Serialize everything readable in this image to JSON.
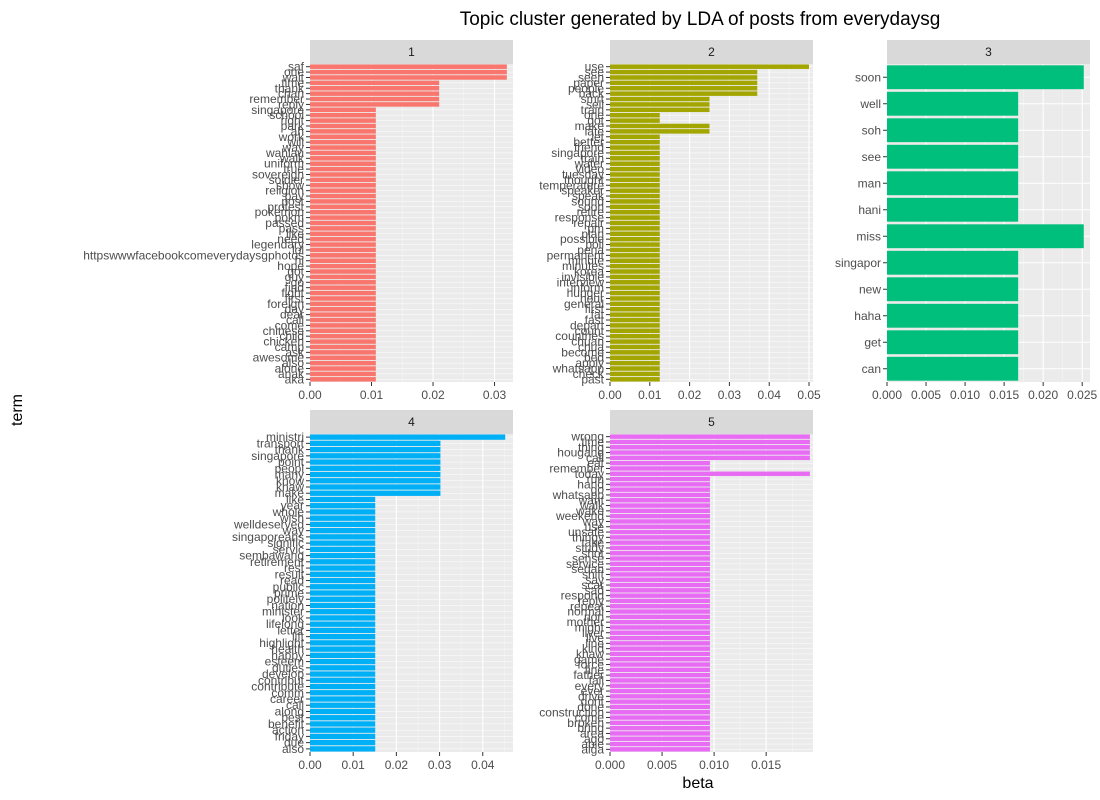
{
  "chart_data": {
    "type": "bar",
    "title": "Topic cluster generated by LDA of posts from everydaysg",
    "xlabel": "beta",
    "ylabel": "term",
    "legend": "none",
    "grid": true,
    "panels": [
      {
        "strip": "1",
        "color": "#F8766D",
        "xlim": [
          0,
          0.033
        ],
        "ticks": [
          0,
          0.01,
          0.02,
          0.03
        ],
        "tick_labels": [
          "0.00",
          "0.01",
          "0.02",
          "0.03"
        ],
        "terms": [
          "saf",
          "one",
          "wait",
          "time",
          "thank",
          "chan",
          "remember",
          "reply",
          "singapore",
          "school",
          "right",
          "park",
          "ah",
          "work",
          "will",
          "way",
          "wahlau",
          "walk",
          "uniform",
          "true",
          "sovereign",
          "soldier",
          "show",
          "religion",
          "pay",
          "post",
          "protest",
          "pokemon",
          "pokm",
          "passed",
          "pass",
          "like",
          "need",
          "legendary",
          "lol",
          "httpswwwfacebookcomeverydaysgphotos",
          "hi",
          "hope",
          "got",
          "guy",
          "go",
          "find",
          "fight",
          "first",
          "foreign",
          "day",
          "dear",
          "call",
          "come",
          "chinese",
          "child",
          "chicken",
          "camp",
          "ask",
          "awesome",
          "also",
          "alone",
          "anak",
          "aka"
        ],
        "values": [
          0.032,
          0.032,
          0.032,
          0.021,
          0.021,
          0.021,
          0.021,
          0.021,
          0.0107,
          0.0107,
          0.0107,
          0.0107,
          0.0107,
          0.0107,
          0.0107,
          0.0107,
          0.0107,
          0.0107,
          0.0107,
          0.0107,
          0.0107,
          0.0107,
          0.0107,
          0.0107,
          0.0107,
          0.0107,
          0.0107,
          0.0107,
          0.0107,
          0.0107,
          0.0107,
          0.0107,
          0.0107,
          0.0107,
          0.0107,
          0.0107,
          0.0107,
          0.0107,
          0.0107,
          0.0107,
          0.0107,
          0.0107,
          0.0107,
          0.0107,
          0.0107,
          0.0107,
          0.0107,
          0.0107,
          0.0107,
          0.0107,
          0.0107,
          0.0107,
          0.0107,
          0.0107,
          0.0107,
          0.0107,
          0.0107,
          0.0107,
          0.0107
        ],
        "label_bottom": "aka"
      },
      {
        "strip": "2",
        "color": "#A3A500",
        "xlim": [
          0,
          0.051
        ],
        "ticks": [
          0,
          0.01,
          0.02,
          0.03,
          0.04,
          0.05
        ],
        "tick_labels": [
          "0.00",
          "0.01",
          "0.02",
          "0.03",
          "0.04",
          "0.05"
        ],
        "terms": [
          "use",
          "see",
          "seen",
          "paper",
          "people",
          "back",
          "smrt",
          "sell",
          "train",
          "one",
          "got",
          "make",
          "late",
          "let",
          "better",
          "friend",
          "singapore",
          "train",
          "water",
          "video",
          "tuesday",
          "thought",
          "temperature",
          "speaker",
          "speak",
          "sound",
          "soon",
          "retire",
          "response",
          "repair",
          "pm",
          "plan",
          "possible",
          "poll",
          "pena",
          "permanent",
          "minute",
          "minutes",
          "korea",
          "invisible",
          "interview",
          "inform",
          "hunger",
          "hour",
          "general",
          "first",
          "fat",
          "fast",
          "depart",
          "count",
          "countries",
          "chuan",
          "chua",
          "become",
          "bed",
          "apply",
          "whatsapp",
          "check",
          "past"
        ],
        "values": [
          0.05,
          0.037,
          0.037,
          0.037,
          0.037,
          0.037,
          0.025,
          0.025,
          0.025,
          0.0125,
          0.0125,
          0.025,
          0.025,
          0.0125,
          0.0125,
          0.0125,
          0.0125,
          0.0125,
          0.0125,
          0.0125,
          0.0125,
          0.0125,
          0.0125,
          0.0125,
          0.0125,
          0.0125,
          0.0125,
          0.0125,
          0.0125,
          0.0125,
          0.0125,
          0.0125,
          0.0125,
          0.0125,
          0.0125,
          0.0125,
          0.0125,
          0.0125,
          0.0125,
          0.0125,
          0.0125,
          0.0125,
          0.0125,
          0.0125,
          0.0125,
          0.0125,
          0.0125,
          0.0125,
          0.0125,
          0.0125,
          0.0125,
          0.0125,
          0.0125,
          0.0125,
          0.0125,
          0.0125,
          0.0125,
          0.0125,
          0.0125
        ],
        "label_bottom": "past"
      },
      {
        "strip": "3",
        "color": "#00BF7D",
        "xlim": [
          0,
          0.026
        ],
        "ticks": [
          0,
          0.005,
          0.01,
          0.015,
          0.02,
          0.025
        ],
        "tick_labels": [
          "0.000",
          "0.005",
          "0.010",
          "0.015",
          "0.020",
          "0.025"
        ],
        "terms": [
          "soon",
          "well",
          "soh",
          "see",
          "man",
          "hani",
          "miss",
          "singapor",
          "new",
          "haha",
          "get",
          "can"
        ],
        "values": [
          0.0252,
          0.0168,
          0.0168,
          0.0168,
          0.0168,
          0.0168,
          0.0252,
          0.0168,
          0.0168,
          0.0168,
          0.0168,
          0.0168
        ]
      },
      {
        "strip": "4",
        "color": "#00B0F6",
        "xlim": [
          0,
          0.047
        ],
        "ticks": [
          0,
          0.01,
          0.02,
          0.03,
          0.04
        ],
        "tick_labels": [
          "0.00",
          "0.01",
          "0.02",
          "0.03",
          "0.04"
        ],
        "terms": [
          "ministri",
          "transport",
          "thank",
          "singapore",
          "point",
          "peopl",
          "many",
          "know",
          "khaw",
          "make",
          "like",
          "year",
          "whole",
          "wish",
          "welldeserved",
          "way",
          "singaporeans",
          "signific",
          "servic",
          "sembawang",
          "retirement",
          "rest",
          "result",
          "read",
          "public",
          "prime",
          "politely",
          "nation",
          "minister",
          "look",
          "lifelong",
          "letter",
          "lift",
          "highlight",
          "health",
          "happy",
          "esteem",
          "duties",
          "develop",
          "contribut",
          "contribute",
          "comm",
          "career",
          "call",
          "along",
          "best",
          "benefit",
          "action",
          "friday",
          "due",
          "also"
        ],
        "values": [
          0.0452,
          0.0302,
          0.0302,
          0.0302,
          0.0302,
          0.0302,
          0.0302,
          0.0302,
          0.0302,
          0.0302,
          0.0151,
          0.0151,
          0.0151,
          0.0151,
          0.0151,
          0.0151,
          0.0151,
          0.0151,
          0.0151,
          0.0151,
          0.0151,
          0.0151,
          0.0151,
          0.0151,
          0.0151,
          0.0151,
          0.0151,
          0.0151,
          0.0151,
          0.0151,
          0.0151,
          0.0151,
          0.0151,
          0.0151,
          0.0151,
          0.0151,
          0.0151,
          0.0151,
          0.0151,
          0.0151,
          0.0151,
          0.0151,
          0.0151,
          0.0151,
          0.0151,
          0.0151,
          0.0151,
          0.0151,
          0.0151,
          0.0151,
          0.0151
        ],
        "label_bottom": "also"
      },
      {
        "strip": "5",
        "color": "#E76BF3",
        "xlim": [
          0,
          0.0195
        ],
        "ticks": [
          0,
          0.005,
          0.01,
          0.015
        ],
        "tick_labels": [
          "0.000",
          "0.005",
          "0.010",
          "0.015"
        ],
        "terms": [
          "wrong",
          "time",
          "thing",
          "hougang",
          "call",
          "eat",
          "remember",
          "today",
          "run",
          "hand",
          "go",
          "whatsapp",
          "want",
          "walk",
          "wake",
          "weekend",
          "way",
          "use",
          "unsafe",
          "thingy",
          "take",
          "study",
          "shot",
          "sense",
          "service",
          "sedan",
          "shift",
          "say",
          "scar",
          "sad",
          "respond",
          "reply",
          "repeat",
          "normal",
          "non",
          "mother",
          "might",
          "liver",
          "live",
          "line",
          "kind",
          "khaw",
          "game",
          "force",
          "fine",
          "father",
          "fall",
          "every",
          "ever",
          "drive",
          "dont",
          "done",
          "construction",
          "come",
          "broken",
          "bring",
          "area",
          "ago",
          "able",
          "aiga"
        ],
        "values": [
          0.0192,
          0.0192,
          0.0192,
          0.0192,
          0.0192,
          0.0096,
          0.0096,
          0.0192,
          0.0096,
          0.0096,
          0.0096,
          0.0096,
          0.0096,
          0.0096,
          0.0096,
          0.0096,
          0.0096,
          0.0096,
          0.0096,
          0.0096,
          0.0096,
          0.0096,
          0.0096,
          0.0096,
          0.0096,
          0.0096,
          0.0096,
          0.0096,
          0.0096,
          0.0096,
          0.0096,
          0.0096,
          0.0096,
          0.0096,
          0.0096,
          0.0096,
          0.0096,
          0.0096,
          0.0096,
          0.0096,
          0.0096,
          0.0096,
          0.0096,
          0.0096,
          0.0096,
          0.0096,
          0.0096,
          0.0096,
          0.0096,
          0.0096,
          0.0096,
          0.0096,
          0.0096,
          0.0096,
          0.0096,
          0.0096,
          0.0096,
          0.0096,
          0.0096,
          0.0096
        ],
        "label_bottom": "aiga"
      }
    ]
  }
}
